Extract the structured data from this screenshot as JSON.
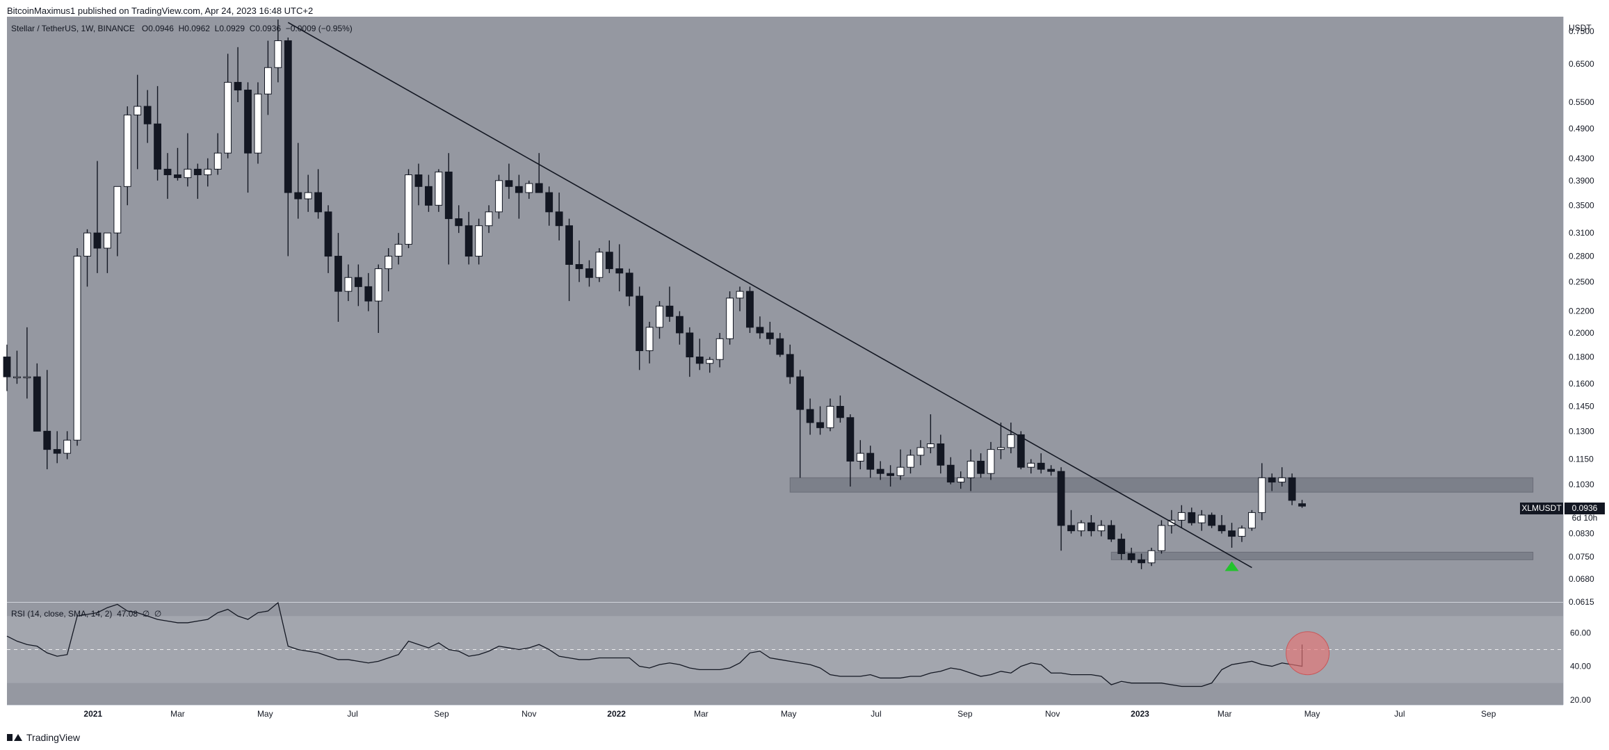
{
  "header": {
    "published": "BitcoinMaximus1 published on TradingView.com, Apr 24, 2023 16:48 UTC+2",
    "symbol": "Stellar / TetherUS, 1W, BINANCE",
    "o_label": "O",
    "o": "0.0946",
    "h_label": "H",
    "h": "0.0962",
    "l_label": "L",
    "l": "0.0929",
    "c_label": "C",
    "c": "0.0936",
    "change": "−0.0009 (−0.95%)"
  },
  "price_badge": {
    "ticker": "XLMUSDT",
    "price": "0.0936",
    "countdown": "6d 10h"
  },
  "rsi_legend": {
    "label": "RSI (14, close, SMA, 14, 2)",
    "value": "47.08",
    "extra1": "∅",
    "extra2": "∅"
  },
  "footer": {
    "brand": "TradingView"
  },
  "colors": {
    "background": "#9598a1",
    "rsi_band": "#a3a6ae",
    "bull": "#ffffff",
    "bear": "#131722",
    "trendline": "#131722",
    "zone": "#787b86",
    "arrow": "#22c32c",
    "circle": "#e57373"
  },
  "chart_data": [
    {
      "type": "candlestick",
      "title": "Stellar / TetherUS, 1W, BINANCE",
      "ylabel": "USDT",
      "scale": "log",
      "ylim": [
        0.0615,
        0.8
      ],
      "y_ticks": [
        "0.7500",
        "0.6500",
        "0.5500",
        "0.4900",
        "0.4300",
        "0.3900",
        "0.3500",
        "0.3100",
        "0.2800",
        "0.2500",
        "0.2200",
        "0.2000",
        "0.1800",
        "0.1600",
        "0.1450",
        "0.1300",
        "0.1150",
        "0.1030",
        "0.0830",
        "0.0750",
        "0.0680",
        "0.0615"
      ],
      "x_ticks": [
        "2021",
        "Mar",
        "May",
        "Jul",
        "Sep",
        "Nov",
        "2022",
        "Mar",
        "May",
        "Jul",
        "Sep",
        "Nov",
        "2023",
        "Mar",
        "May",
        "Jul",
        "Sep"
      ],
      "x_range": [
        "2020-11-02",
        "2023-10-23"
      ],
      "candles": [
        [
          "2020-11-02",
          0.18,
          0.19,
          0.155,
          0.165
        ],
        [
          "2020-11-09",
          0.165,
          0.185,
          0.16,
          0.165
        ],
        [
          "2020-11-16",
          0.165,
          0.205,
          0.15,
          0.165
        ],
        [
          "2020-11-23",
          0.165,
          0.175,
          0.13,
          0.13
        ],
        [
          "2020-11-30",
          0.13,
          0.17,
          0.11,
          0.12
        ],
        [
          "2020-12-07",
          0.12,
          0.13,
          0.113,
          0.118
        ],
        [
          "2020-12-14",
          0.118,
          0.13,
          0.115,
          0.125
        ],
        [
          "2020-12-21",
          0.125,
          0.29,
          0.122,
          0.28
        ],
        [
          "2020-12-28",
          0.28,
          0.315,
          0.245,
          0.31
        ],
        [
          "2021-01-04",
          0.31,
          0.425,
          0.26,
          0.29
        ],
        [
          "2021-01-11",
          0.29,
          0.31,
          0.26,
          0.31
        ],
        [
          "2021-01-18",
          0.31,
          0.38,
          0.28,
          0.38
        ],
        [
          "2021-01-25",
          0.38,
          0.54,
          0.35,
          0.52
        ],
        [
          "2021-02-01",
          0.52,
          0.62,
          0.41,
          0.54
        ],
        [
          "2021-02-08",
          0.54,
          0.58,
          0.46,
          0.5
        ],
        [
          "2021-02-15",
          0.5,
          0.59,
          0.39,
          0.41
        ],
        [
          "2021-02-22",
          0.41,
          0.44,
          0.36,
          0.4
        ],
        [
          "2021-03-01",
          0.4,
          0.45,
          0.39,
          0.395
        ],
        [
          "2021-03-08",
          0.395,
          0.48,
          0.38,
          0.41
        ],
        [
          "2021-03-15",
          0.41,
          0.42,
          0.36,
          0.4
        ],
        [
          "2021-03-22",
          0.4,
          0.43,
          0.38,
          0.41
        ],
        [
          "2021-03-29",
          0.41,
          0.48,
          0.4,
          0.44
        ],
        [
          "2021-04-05",
          0.44,
          0.68,
          0.43,
          0.6
        ],
        [
          "2021-04-12",
          0.6,
          0.7,
          0.55,
          0.58
        ],
        [
          "2021-04-19",
          0.58,
          0.6,
          0.37,
          0.44
        ],
        [
          "2021-04-26",
          0.44,
          0.6,
          0.42,
          0.57
        ],
        [
          "2021-05-03",
          0.57,
          0.72,
          0.52,
          0.64
        ],
        [
          "2021-05-10",
          0.64,
          0.79,
          0.6,
          0.72
        ],
        [
          "2021-05-17",
          0.72,
          0.73,
          0.28,
          0.37
        ],
        [
          "2021-05-24",
          0.37,
          0.46,
          0.33,
          0.36
        ],
        [
          "2021-05-31",
          0.36,
          0.4,
          0.34,
          0.37
        ],
        [
          "2021-06-07",
          0.37,
          0.41,
          0.33,
          0.34
        ],
        [
          "2021-06-14",
          0.34,
          0.35,
          0.26,
          0.28
        ],
        [
          "2021-06-21",
          0.28,
          0.31,
          0.21,
          0.24
        ],
        [
          "2021-06-28",
          0.24,
          0.27,
          0.23,
          0.255
        ],
        [
          "2021-07-05",
          0.255,
          0.27,
          0.225,
          0.245
        ],
        [
          "2021-07-12",
          0.245,
          0.26,
          0.22,
          0.23
        ],
        [
          "2021-07-19",
          0.23,
          0.27,
          0.2,
          0.265
        ],
        [
          "2021-07-26",
          0.265,
          0.29,
          0.24,
          0.28
        ],
        [
          "2021-08-02",
          0.28,
          0.31,
          0.27,
          0.295
        ],
        [
          "2021-08-09",
          0.295,
          0.41,
          0.29,
          0.4
        ],
        [
          "2021-08-16",
          0.4,
          0.42,
          0.35,
          0.38
        ],
        [
          "2021-08-23",
          0.38,
          0.4,
          0.34,
          0.35
        ],
        [
          "2021-08-30",
          0.35,
          0.41,
          0.34,
          0.405
        ],
        [
          "2021-09-06",
          0.405,
          0.44,
          0.27,
          0.33
        ],
        [
          "2021-09-13",
          0.33,
          0.35,
          0.31,
          0.32
        ],
        [
          "2021-09-20",
          0.32,
          0.34,
          0.27,
          0.28
        ],
        [
          "2021-09-27",
          0.28,
          0.33,
          0.27,
          0.32
        ],
        [
          "2021-10-04",
          0.32,
          0.35,
          0.31,
          0.34
        ],
        [
          "2021-10-11",
          0.34,
          0.4,
          0.33,
          0.39
        ],
        [
          "2021-10-18",
          0.39,
          0.42,
          0.36,
          0.38
        ],
        [
          "2021-10-25",
          0.38,
          0.4,
          0.33,
          0.37
        ],
        [
          "2021-11-01",
          0.37,
          0.39,
          0.36,
          0.385
        ],
        [
          "2021-11-08",
          0.385,
          0.44,
          0.37,
          0.37
        ],
        [
          "2021-11-15",
          0.37,
          0.38,
          0.32,
          0.34
        ],
        [
          "2021-11-22",
          0.34,
          0.37,
          0.3,
          0.32
        ],
        [
          "2021-11-29",
          0.32,
          0.33,
          0.23,
          0.27
        ],
        [
          "2021-12-06",
          0.27,
          0.3,
          0.25,
          0.265
        ],
        [
          "2021-12-13",
          0.265,
          0.275,
          0.245,
          0.255
        ],
        [
          "2021-12-20",
          0.255,
          0.29,
          0.25,
          0.285
        ],
        [
          "2021-12-27",
          0.285,
          0.3,
          0.26,
          0.265
        ],
        [
          "2022-01-03",
          0.265,
          0.295,
          0.24,
          0.26
        ],
        [
          "2022-01-10",
          0.26,
          0.265,
          0.225,
          0.235
        ],
        [
          "2022-01-17",
          0.235,
          0.245,
          0.17,
          0.185
        ],
        [
          "2022-01-24",
          0.185,
          0.21,
          0.175,
          0.205
        ],
        [
          "2022-01-31",
          0.205,
          0.23,
          0.195,
          0.225
        ],
        [
          "2022-02-07",
          0.225,
          0.245,
          0.21,
          0.215
        ],
        [
          "2022-02-14",
          0.215,
          0.22,
          0.19,
          0.2
        ],
        [
          "2022-02-21",
          0.2,
          0.205,
          0.165,
          0.18
        ],
        [
          "2022-02-28",
          0.18,
          0.195,
          0.17,
          0.175
        ],
        [
          "2022-03-07",
          0.175,
          0.18,
          0.168,
          0.178
        ],
        [
          "2022-03-14",
          0.178,
          0.2,
          0.172,
          0.195
        ],
        [
          "2022-03-21",
          0.195,
          0.24,
          0.19,
          0.233
        ],
        [
          "2022-03-28",
          0.233,
          0.245,
          0.22,
          0.24
        ],
        [
          "2022-04-04",
          0.24,
          0.245,
          0.2,
          0.205
        ],
        [
          "2022-04-11",
          0.205,
          0.215,
          0.195,
          0.2
        ],
        [
          "2022-04-18",
          0.2,
          0.21,
          0.19,
          0.195
        ],
        [
          "2022-04-25",
          0.195,
          0.2,
          0.18,
          0.182
        ],
        [
          "2022-05-02",
          0.182,
          0.19,
          0.16,
          0.165
        ],
        [
          "2022-05-09",
          0.165,
          0.17,
          0.106,
          0.143
        ],
        [
          "2022-05-16",
          0.143,
          0.15,
          0.128,
          0.135
        ],
        [
          "2022-05-23",
          0.135,
          0.145,
          0.128,
          0.132
        ],
        [
          "2022-05-30",
          0.132,
          0.15,
          0.13,
          0.145
        ],
        [
          "2022-06-06",
          0.145,
          0.152,
          0.135,
          0.138
        ],
        [
          "2022-06-13",
          0.138,
          0.14,
          0.102,
          0.114
        ],
        [
          "2022-06-20",
          0.114,
          0.125,
          0.11,
          0.118
        ],
        [
          "2022-06-27",
          0.118,
          0.122,
          0.106,
          0.11
        ],
        [
          "2022-07-04",
          0.11,
          0.114,
          0.105,
          0.108
        ],
        [
          "2022-07-11",
          0.108,
          0.112,
          0.102,
          0.107
        ],
        [
          "2022-07-18",
          0.107,
          0.12,
          0.105,
          0.111
        ],
        [
          "2022-07-25",
          0.111,
          0.12,
          0.108,
          0.117
        ],
        [
          "2022-08-01",
          0.117,
          0.125,
          0.112,
          0.121
        ],
        [
          "2022-08-08",
          0.121,
          0.14,
          0.118,
          0.123
        ],
        [
          "2022-08-15",
          0.123,
          0.128,
          0.108,
          0.112
        ],
        [
          "2022-08-22",
          0.112,
          0.116,
          0.103,
          0.104
        ],
        [
          "2022-08-29",
          0.104,
          0.109,
          0.101,
          0.106
        ],
        [
          "2022-09-05",
          0.106,
          0.12,
          0.1,
          0.114
        ],
        [
          "2022-09-12",
          0.114,
          0.118,
          0.106,
          0.108
        ],
        [
          "2022-09-19",
          0.108,
          0.124,
          0.105,
          0.12
        ],
        [
          "2022-09-26",
          0.12,
          0.135,
          0.115,
          0.121
        ],
        [
          "2022-10-03",
          0.121,
          0.135,
          0.118,
          0.128
        ],
        [
          "2022-10-10",
          0.128,
          0.13,
          0.11,
          0.111
        ],
        [
          "2022-10-17",
          0.111,
          0.115,
          0.108,
          0.113
        ],
        [
          "2022-10-24",
          0.113,
          0.118,
          0.108,
          0.11
        ],
        [
          "2022-10-31",
          0.11,
          0.112,
          0.107,
          0.109
        ],
        [
          "2022-11-07",
          0.109,
          0.111,
          0.077,
          0.086
        ],
        [
          "2022-11-14",
          0.086,
          0.092,
          0.083,
          0.084
        ],
        [
          "2022-11-21",
          0.084,
          0.088,
          0.082,
          0.087
        ],
        [
          "2022-11-28",
          0.087,
          0.09,
          0.082,
          0.084
        ],
        [
          "2022-12-05",
          0.084,
          0.088,
          0.082,
          0.086
        ],
        [
          "2022-12-12",
          0.086,
          0.088,
          0.08,
          0.081
        ],
        [
          "2022-12-19",
          0.081,
          0.083,
          0.074,
          0.076
        ],
        [
          "2022-12-26",
          0.076,
          0.078,
          0.073,
          0.074
        ],
        [
          "2023-01-02",
          0.074,
          0.076,
          0.071,
          0.073
        ],
        [
          "2023-01-09",
          0.073,
          0.078,
          0.072,
          0.077
        ],
        [
          "2023-01-16",
          0.077,
          0.088,
          0.076,
          0.086
        ],
        [
          "2023-01-23",
          0.086,
          0.092,
          0.083,
          0.088
        ],
        [
          "2023-01-30",
          0.088,
          0.094,
          0.085,
          0.091
        ],
        [
          "2023-02-06",
          0.091,
          0.093,
          0.086,
          0.087
        ],
        [
          "2023-02-13",
          0.087,
          0.092,
          0.084,
          0.09
        ],
        [
          "2023-02-20",
          0.09,
          0.091,
          0.085,
          0.086
        ],
        [
          "2023-02-27",
          0.086,
          0.09,
          0.083,
          0.084
        ],
        [
          "2023-03-06",
          0.084,
          0.087,
          0.078,
          0.082
        ],
        [
          "2023-03-13",
          0.082,
          0.086,
          0.08,
          0.085
        ],
        [
          "2023-03-20",
          0.085,
          0.092,
          0.084,
          0.091
        ],
        [
          "2023-03-27",
          0.091,
          0.113,
          0.088,
          0.106
        ],
        [
          "2023-04-03",
          0.106,
          0.108,
          0.1,
          0.104
        ],
        [
          "2023-04-10",
          0.104,
          0.111,
          0.102,
          0.106
        ],
        [
          "2023-04-17",
          0.106,
          0.108,
          0.094,
          0.096
        ],
        [
          "2023-04-24",
          0.0946,
          0.0962,
          0.0929,
          0.0936
        ]
      ],
      "trendline": [
        [
          "2021-05-17",
          0.78
        ],
        [
          "2023-03-20",
          0.0715
        ]
      ],
      "zones": [
        {
          "from": "2022-05-02",
          "to": "2023-10-02",
          "low": 0.0995,
          "high": 0.106
        },
        {
          "from": "2022-12-12",
          "to": "2023-10-02",
          "low": 0.074,
          "high": 0.0765
        }
      ],
      "markers": [
        {
          "type": "arrow-up",
          "date": "2023-03-06",
          "value": 0.0735
        }
      ]
    },
    {
      "type": "line",
      "title": "RSI (14, close, SMA, 14, 2)",
      "ylim": [
        17,
        78
      ],
      "y_ticks": [
        "60.00",
        "40.00",
        "20.00"
      ],
      "band": [
        30,
        70
      ],
      "midline": 50,
      "series": [
        {
          "values": [
            58,
            55,
            53,
            52,
            48,
            46,
            47,
            70,
            71,
            72,
            75,
            77,
            73,
            72,
            70,
            68,
            67,
            66,
            66,
            67,
            68,
            72,
            74,
            70,
            68,
            72,
            73,
            78,
            52,
            50,
            49,
            48,
            46,
            44,
            44,
            43,
            42,
            43,
            45,
            47,
            55,
            53,
            51,
            54,
            50,
            49,
            46,
            47,
            49,
            52,
            51,
            50,
            51,
            53,
            50,
            46,
            45,
            44,
            44,
            45,
            45,
            45,
            45,
            40,
            39,
            41,
            42,
            41,
            39,
            38,
            38,
            38,
            39,
            42,
            48,
            49,
            45,
            44,
            43,
            42,
            41,
            39,
            35,
            34,
            34,
            34,
            35,
            33,
            33,
            33,
            34,
            34,
            36,
            37,
            39,
            38,
            36,
            34,
            35,
            37,
            36,
            40,
            42,
            41,
            36,
            36,
            35,
            35,
            35,
            34,
            29,
            31,
            30,
            30,
            30,
            30,
            29,
            28,
            28,
            28,
            30,
            38,
            41,
            42,
            43,
            41,
            40,
            42,
            41,
            40,
            40,
            41,
            43,
            50,
            53,
            52,
            49,
            47
          ]
        }
      ],
      "circle_marker": {
        "index": 137,
        "value": 47
      }
    }
  ]
}
